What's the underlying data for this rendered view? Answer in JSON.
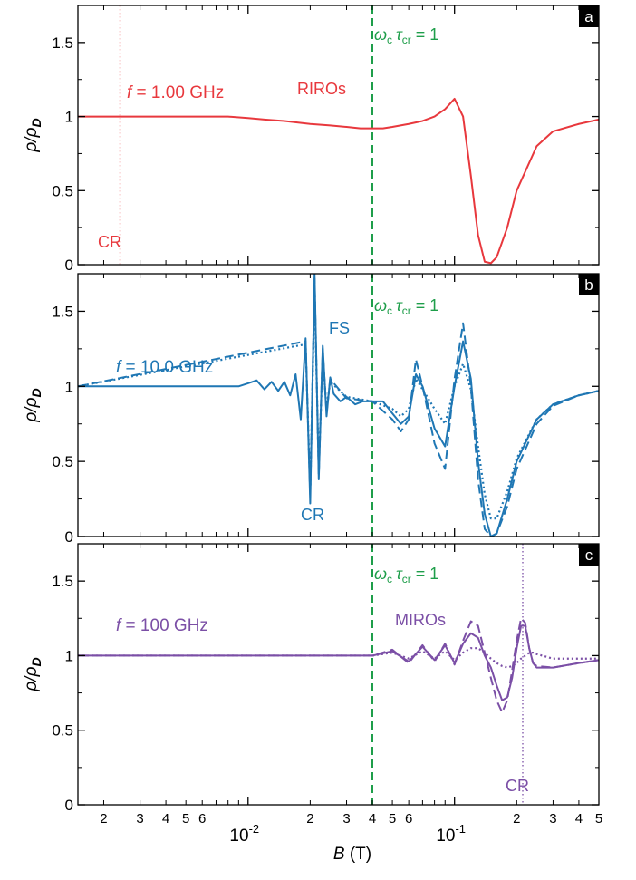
{
  "figure": {
    "x_axis_label": {
      "symbol": "B",
      "unit": " (T)"
    },
    "colors": {
      "axis": "#000000",
      "guide": "#1e9e4a"
    }
  },
  "chart_data": [
    {
      "panel_letter": "a",
      "type": "line",
      "x_scale": "log",
      "xlim": [
        0.0015,
        0.5
      ],
      "ylim": [
        0,
        1.75
      ],
      "y_ticks": [
        0,
        0.5,
        1,
        1.5
      ],
      "y_tick_labels": [
        "0",
        "0.5",
        "1",
        "1.5"
      ],
      "ylabel": {
        "main": "ρ/ρ",
        "sub": "D"
      },
      "color": "#e8383d",
      "frequency_label": {
        "symbol": "f",
        "text": " = 1.00 GHz"
      },
      "annotations": [
        "RIROs",
        "CR"
      ],
      "guide_label": {
        "omega": "ω",
        "c": "c",
        "tau": "τ",
        "cr": "cr",
        "eq": " = 1"
      },
      "cr_field": 0.0024,
      "crossover_field": 0.04,
      "series": [
        {
          "style": "solid",
          "x": [
            0.0015,
            0.004,
            0.006,
            0.008,
            0.01,
            0.012,
            0.015,
            0.02,
            0.025,
            0.03,
            0.035,
            0.04,
            0.045,
            0.05,
            0.06,
            0.07,
            0.08,
            0.09,
            0.1,
            0.11,
            0.12,
            0.13,
            0.14,
            0.15,
            0.16,
            0.18,
            0.2,
            0.25,
            0.3,
            0.4,
            0.5
          ],
          "y": [
            1.0,
            1.0,
            1.0,
            1.0,
            0.99,
            0.98,
            0.97,
            0.95,
            0.94,
            0.93,
            0.92,
            0.92,
            0.92,
            0.93,
            0.95,
            0.97,
            1.0,
            1.05,
            1.12,
            1.0,
            0.6,
            0.2,
            0.02,
            0.01,
            0.05,
            0.25,
            0.5,
            0.8,
            0.9,
            0.95,
            0.98
          ]
        }
      ]
    },
    {
      "panel_letter": "b",
      "type": "line",
      "x_scale": "log",
      "xlim": [
        0.0015,
        0.5
      ],
      "ylim": [
        0,
        1.75
      ],
      "y_ticks": [
        0,
        0.5,
        1,
        1.5
      ],
      "y_tick_labels": [
        "0",
        "0.5",
        "1",
        "1.5"
      ],
      "ylabel": {
        "main": "ρ/ρ",
        "sub": "D"
      },
      "color": "#1f77b4",
      "frequency_label": {
        "symbol": "f",
        "text": " = 10.0 GHz"
      },
      "annotations": [
        "FS",
        "CR"
      ],
      "guide_label": {
        "omega": "ω",
        "c": "c",
        "tau": "τ",
        "cr": "cr",
        "eq": " = 1"
      },
      "crossover_field": 0.04,
      "series": [
        {
          "style": "solid",
          "x": [
            0.0015,
            0.005,
            0.009,
            0.01,
            0.011,
            0.012,
            0.013,
            0.014,
            0.015,
            0.016,
            0.017,
            0.018,
            0.019,
            0.02,
            0.021,
            0.022,
            0.023,
            0.024,
            0.025,
            0.026,
            0.028,
            0.03,
            0.033,
            0.036,
            0.04,
            0.045,
            0.05,
            0.055,
            0.06,
            0.065,
            0.07,
            0.08,
            0.09,
            0.1,
            0.11,
            0.12,
            0.13,
            0.14,
            0.15,
            0.16,
            0.18,
            0.2,
            0.25,
            0.3,
            0.4,
            0.5
          ],
          "y": [
            1.0,
            1.0,
            1.0,
            1.02,
            1.04,
            0.98,
            1.03,
            0.97,
            1.03,
            0.94,
            1.08,
            0.78,
            1.32,
            0.22,
            1.75,
            0.38,
            1.27,
            0.8,
            1.06,
            0.95,
            0.9,
            0.93,
            0.88,
            0.9,
            0.9,
            0.9,
            0.82,
            0.75,
            0.8,
            1.08,
            1.0,
            0.72,
            0.6,
            1.0,
            1.3,
            1.05,
            0.5,
            0.15,
            0.0,
            0.02,
            0.25,
            0.5,
            0.78,
            0.88,
            0.94,
            0.97
          ]
        },
        {
          "style": "dashed",
          "x": [
            0.0015,
            0.019,
            0.02,
            0.021,
            0.022,
            0.023,
            0.024,
            0.025,
            0.03,
            0.04,
            0.05,
            0.055,
            0.06,
            0.065,
            0.07,
            0.08,
            0.09,
            0.1,
            0.11,
            0.12,
            0.13,
            0.14,
            0.15,
            0.16,
            0.18,
            0.2,
            0.25,
            0.3,
            0.4,
            0.5
          ],
          "y": [
            1.0,
            1.3,
            0.28,
            1.72,
            0.4,
            1.25,
            0.82,
            1.05,
            0.92,
            0.9,
            0.78,
            0.7,
            0.78,
            1.18,
            1.0,
            0.62,
            0.45,
            1.05,
            1.42,
            1.0,
            0.38,
            0.05,
            0.0,
            0.02,
            0.2,
            0.45,
            0.75,
            0.87,
            0.94,
            0.97
          ]
        },
        {
          "style": "dotted",
          "x": [
            0.0015,
            0.019,
            0.02,
            0.021,
            0.022,
            0.023,
            0.024,
            0.025,
            0.03,
            0.04,
            0.05,
            0.055,
            0.06,
            0.065,
            0.07,
            0.08,
            0.09,
            0.1,
            0.11,
            0.12,
            0.13,
            0.14,
            0.15,
            0.16,
            0.18,
            0.2,
            0.25,
            0.3,
            0.4,
            0.5
          ],
          "y": [
            1.0,
            1.28,
            0.3,
            1.65,
            0.45,
            1.2,
            0.85,
            1.03,
            0.93,
            0.9,
            0.85,
            0.8,
            0.85,
            1.05,
            0.98,
            0.85,
            0.75,
            1.0,
            1.15,
            0.98,
            0.6,
            0.28,
            0.12,
            0.12,
            0.3,
            0.52,
            0.78,
            0.88,
            0.94,
            0.97
          ]
        }
      ]
    },
    {
      "panel_letter": "c",
      "type": "line",
      "x_scale": "log",
      "xlim": [
        0.0015,
        0.5
      ],
      "ylim": [
        0,
        1.75
      ],
      "y_ticks": [
        0,
        0.5,
        1,
        1.5
      ],
      "y_tick_labels": [
        "0",
        "0.5",
        "1",
        "1.5"
      ],
      "ylabel": {
        "main": "ρ/ρ",
        "sub": "D"
      },
      "color": "#7b4fa6",
      "frequency_label": {
        "symbol": "f",
        "text": " = 100 GHz"
      },
      "annotations": [
        "MIROs",
        "CR"
      ],
      "guide_label": {
        "omega": "ω",
        "c": "c",
        "tau": "τ",
        "cr": "cr",
        "eq": " = 1"
      },
      "cr_field": 0.214,
      "crossover_field": 0.04,
      "series": [
        {
          "style": "solid",
          "x": [
            0.0015,
            0.005,
            0.01,
            0.015,
            0.02,
            0.03,
            0.04,
            0.05,
            0.06,
            0.07,
            0.08,
            0.09,
            0.1,
            0.11,
            0.12,
            0.13,
            0.14,
            0.15,
            0.16,
            0.17,
            0.18,
            0.19,
            0.2,
            0.21,
            0.22,
            0.23,
            0.24,
            0.25,
            0.3,
            0.4,
            0.5
          ],
          "y": [
            1.0,
            1.0,
            1.0,
            1.0,
            1.0,
            1.0,
            1.0,
            1.03,
            0.96,
            1.06,
            0.97,
            1.07,
            0.95,
            1.08,
            1.15,
            1.12,
            1.0,
            0.92,
            0.8,
            0.7,
            0.72,
            0.85,
            1.05,
            1.2,
            1.2,
            1.05,
            0.95,
            0.92,
            0.92,
            0.95,
            0.97
          ]
        },
        {
          "style": "dashed",
          "x": [
            0.0015,
            0.005,
            0.01,
            0.015,
            0.02,
            0.03,
            0.04,
            0.05,
            0.06,
            0.07,
            0.08,
            0.09,
            0.1,
            0.11,
            0.12,
            0.13,
            0.14,
            0.15,
            0.16,
            0.17,
            0.18,
            0.19,
            0.2,
            0.21,
            0.22,
            0.23,
            0.24,
            0.25,
            0.3,
            0.4,
            0.5
          ],
          "y": [
            1.0,
            1.0,
            1.0,
            1.0,
            1.0,
            1.0,
            1.0,
            1.04,
            0.95,
            1.07,
            0.96,
            1.08,
            0.94,
            1.1,
            1.23,
            1.2,
            1.02,
            0.85,
            0.7,
            0.62,
            0.7,
            0.9,
            1.1,
            1.25,
            1.22,
            1.05,
            0.95,
            0.93,
            0.92,
            0.95,
            0.97
          ]
        },
        {
          "style": "dotted",
          "x": [
            0.0015,
            0.005,
            0.01,
            0.015,
            0.02,
            0.03,
            0.04,
            0.05,
            0.06,
            0.07,
            0.08,
            0.09,
            0.1,
            0.11,
            0.12,
            0.13,
            0.14,
            0.15,
            0.16,
            0.17,
            0.18,
            0.19,
            0.2,
            0.21,
            0.22,
            0.23,
            0.24,
            0.25,
            0.3,
            0.4,
            0.5
          ],
          "y": [
            1.0,
            1.0,
            1.0,
            1.0,
            1.0,
            1.0,
            1.0,
            1.02,
            0.98,
            1.03,
            0.98,
            1.03,
            0.97,
            1.02,
            1.05,
            1.05,
            1.02,
            0.98,
            0.95,
            0.93,
            0.92,
            0.93,
            0.95,
            0.98,
            1.0,
            1.02,
            1.02,
            1.01,
            0.98,
            0.98,
            0.98
          ]
        }
      ]
    }
  ],
  "x_ticks": {
    "major": [
      0.01,
      0.1
    ],
    "major_labels": [
      {
        "base": "10",
        "exp": "-2"
      },
      {
        "base": "10",
        "exp": "-1"
      }
    ],
    "minor": [
      0.002,
      0.003,
      0.004,
      0.005,
      0.006,
      0.02,
      0.03,
      0.04,
      0.05,
      0.06,
      0.2,
      0.3,
      0.4,
      0.5
    ],
    "minor_labels": [
      "2",
      "3",
      "4",
      "5",
      "6",
      "2",
      "3",
      "4",
      "5",
      "6",
      "2",
      "3",
      "4",
      "5"
    ],
    "unlabeled": [
      0.007,
      0.008,
      0.009,
      0.07,
      0.08,
      0.09
    ]
  }
}
